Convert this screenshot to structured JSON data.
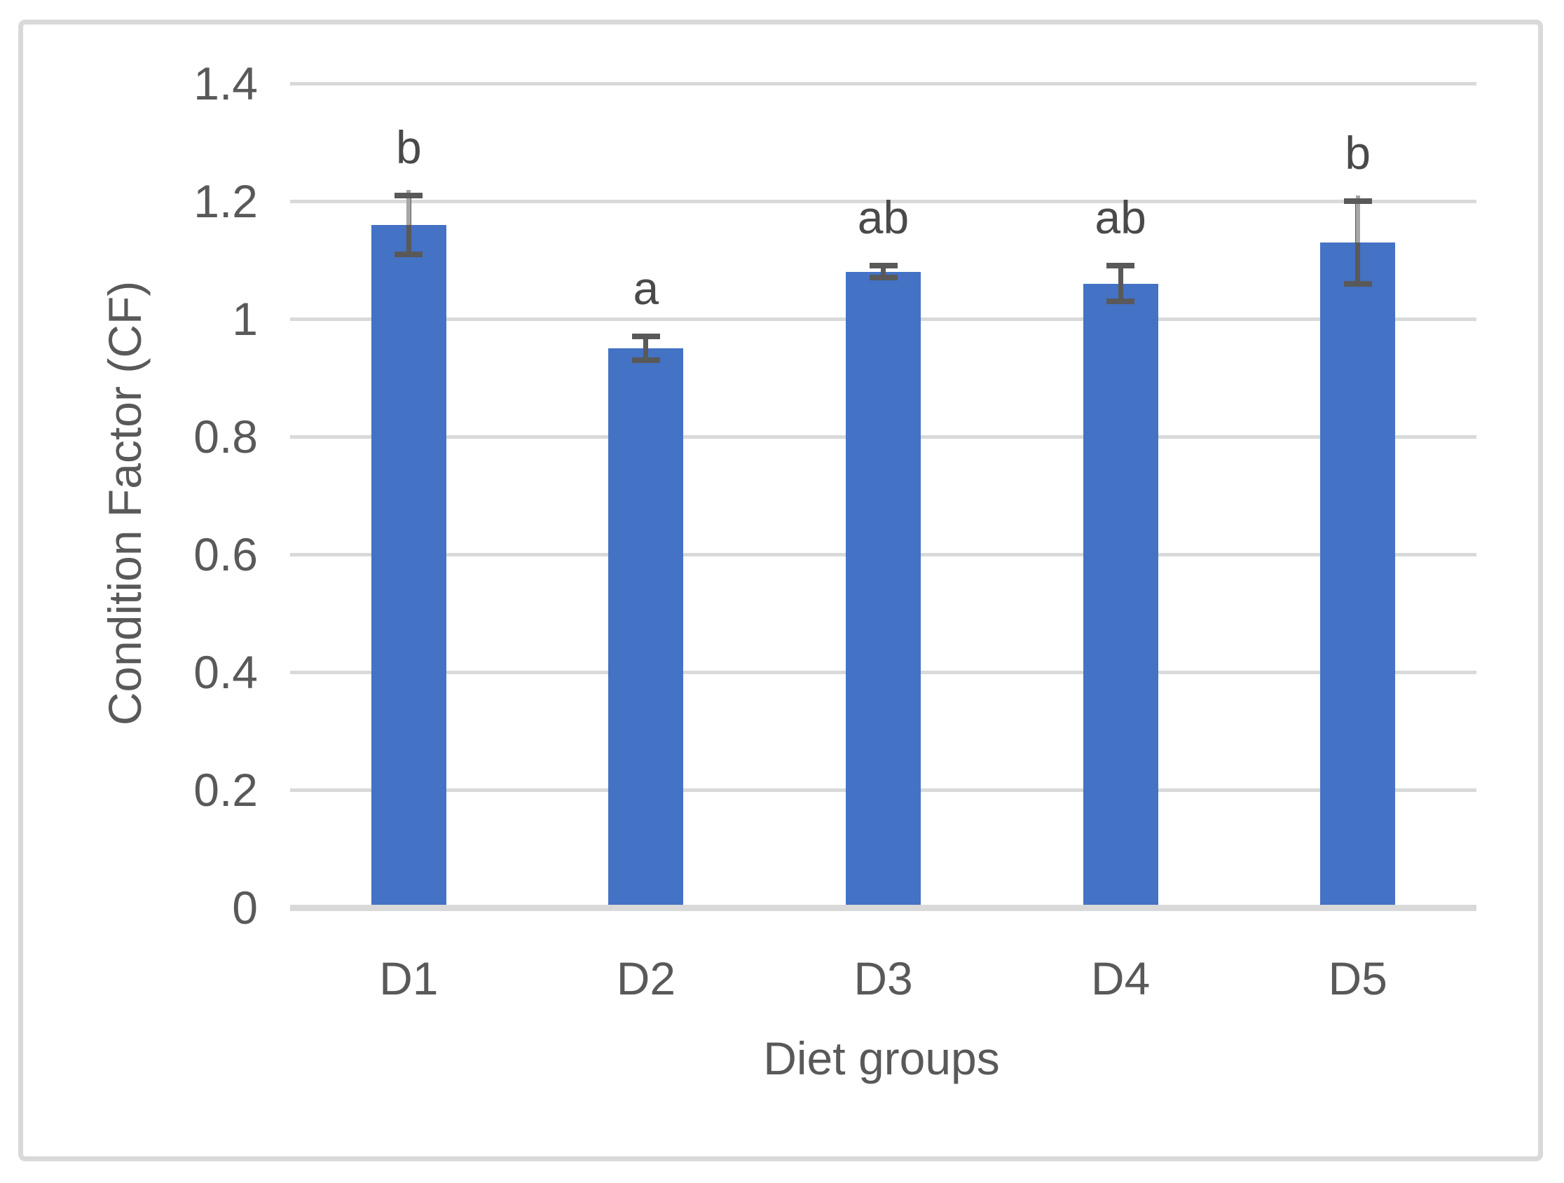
{
  "figure": {
    "background": "#FFFFFF",
    "frame_border_color": "#D9D9D9"
  },
  "chart_data": {
    "type": "bar",
    "title": "",
    "xlabel": "Diet groups",
    "ylabel": "Condition Factor (CF)",
    "categories": [
      "D1",
      "D2",
      "D3",
      "D4",
      "D5"
    ],
    "values": [
      1.16,
      0.95,
      1.08,
      1.06,
      1.13
    ],
    "error_plus": [
      0.05,
      0.02,
      0.01,
      0.03,
      0.07
    ],
    "error_minus": [
      0.05,
      0.02,
      0.01,
      0.03,
      0.07
    ],
    "sig_letters": [
      "b",
      "a",
      "ab",
      "ab",
      "b"
    ],
    "error_upper_segment_light": [
      true,
      false,
      false,
      false,
      true
    ],
    "ylim": [
      0,
      1.4
    ],
    "ytick_step": 0.2,
    "ytick_labels": [
      "0",
      "0.2",
      "0.4",
      "0.6",
      "0.8",
      "1",
      "1.2",
      "1.4"
    ],
    "grid": true,
    "legend": "none",
    "colors": {
      "bar": "#4472C4",
      "error_dark": "#595959",
      "error_light": "#A6A6A6",
      "gridline": "#D9D9D9",
      "axis_line": "#D9D9D9",
      "axis_text": "#595959",
      "letter_text": "#4A4A4A"
    }
  }
}
